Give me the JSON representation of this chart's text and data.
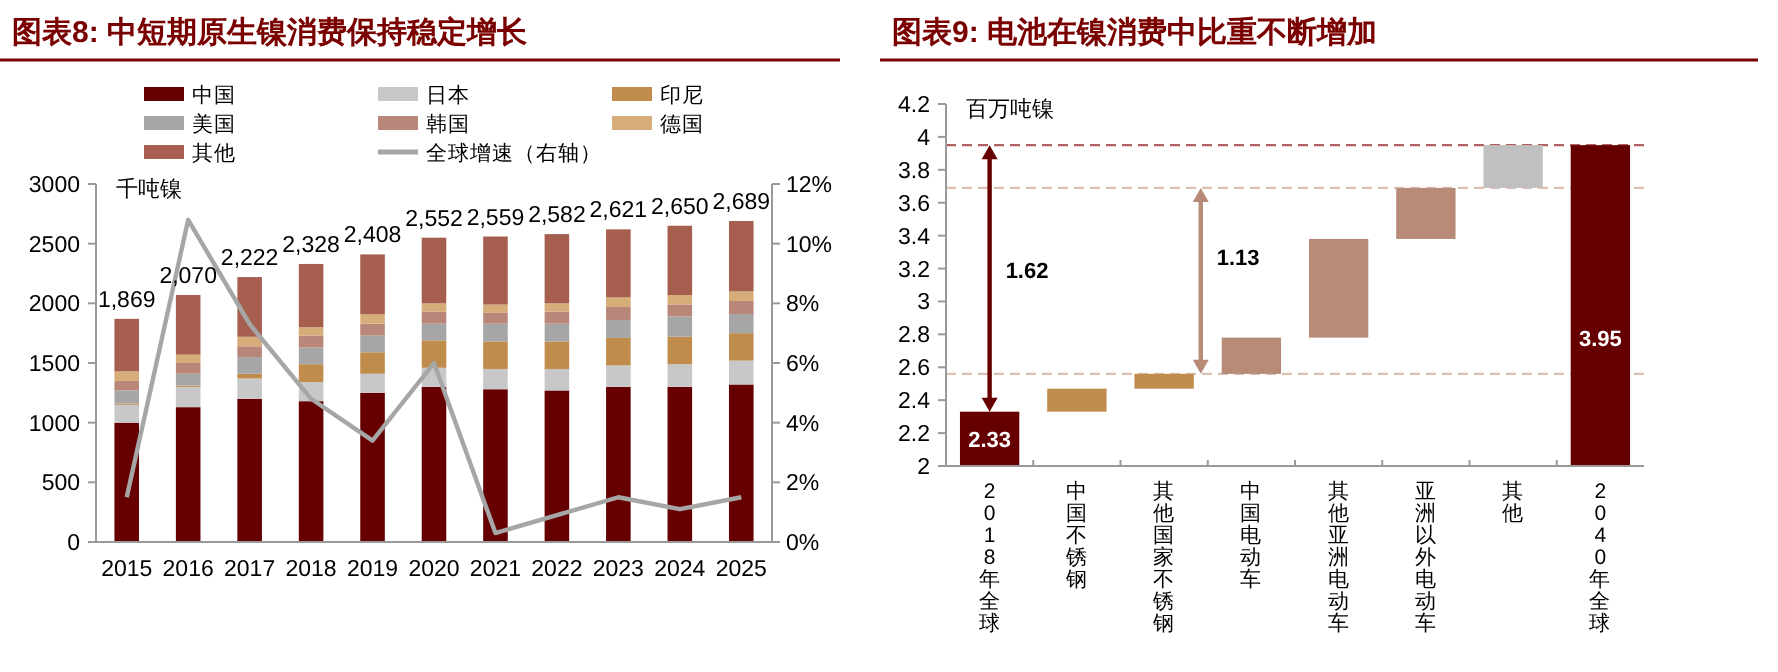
{
  "chart_data": [
    {
      "type": "bar",
      "title": "图表8: 中短期原生镍消费保持稳定增长",
      "ylabel": "千吨镍",
      "stacked": true,
      "legend": "top",
      "categories": [
        "2015",
        "2016",
        "2017",
        "2018",
        "2019",
        "2020",
        "2021",
        "2022",
        "2023",
        "2024",
        "2025"
      ],
      "series": [
        {
          "name": "中国",
          "color": "#660000",
          "values": [
            1000,
            1130,
            1200,
            1180,
            1250,
            1300,
            1280,
            1270,
            1300,
            1300,
            1320
          ]
        },
        {
          "name": "日本",
          "color": "#c8c8c8",
          "values": [
            150,
            170,
            170,
            160,
            160,
            160,
            170,
            180,
            180,
            190,
            200
          ]
        },
        {
          "name": "印尼",
          "color": "#c08c4c",
          "values": [
            10,
            10,
            40,
            150,
            180,
            230,
            230,
            230,
            230,
            230,
            230
          ]
        },
        {
          "name": "美国",
          "color": "#a6a6a6",
          "values": [
            110,
            100,
            140,
            140,
            140,
            140,
            150,
            150,
            150,
            170,
            160
          ]
        },
        {
          "name": "韩国",
          "color": "#b8877a",
          "values": [
            80,
            90,
            90,
            100,
            100,
            100,
            90,
            100,
            110,
            100,
            110
          ]
        },
        {
          "name": "德国",
          "color": "#d6ac78",
          "values": [
            80,
            70,
            80,
            70,
            80,
            70,
            70,
            70,
            80,
            80,
            80
          ]
        },
        {
          "name": "其他",
          "color": "#a65e4e",
          "values": [
            440,
            500,
            500,
            530,
            500,
            550,
            570,
            580,
            570,
            580,
            590
          ]
        },
        {
          "name": "全球增速（右轴）",
          "type": "line",
          "axis": "y2",
          "color": "#a6a6a6",
          "values": [
            1.5,
            10.8,
            7.3,
            4.8,
            3.4,
            6.0,
            0.3,
            0.9,
            1.5,
            1.1,
            1.5
          ]
        }
      ],
      "totals": [
        "1,869",
        "2,070",
        "2,222",
        "2,328",
        "2,408",
        "2,552",
        "2,559",
        "2,582",
        "2,621",
        "2,650",
        "2,689"
      ],
      "ylim": [
        0,
        3000
      ],
      "yticks": [
        0,
        500,
        1000,
        1500,
        2000,
        2500,
        3000
      ],
      "y2lim": [
        0,
        12
      ],
      "y2ticks": [
        {
          "value": 0,
          "label": "0%"
        },
        {
          "value": 2,
          "label": "2%"
        },
        {
          "value": 4,
          "label": "4%"
        },
        {
          "value": 6,
          "label": "6%"
        },
        {
          "value": 8,
          "label": "8%"
        },
        {
          "value": 10,
          "label": "10%"
        },
        {
          "value": 12,
          "label": "12%"
        }
      ]
    },
    {
      "type": "bar",
      "title": "图表9: 电池在镍消费中比重不断增加",
      "ylabel": "百万吨镍",
      "categories": [
        "2018年全球",
        "中国不锈钢",
        "其他国家不锈钢",
        "中国电动车",
        "其他亚洲电动车",
        "亚洲以外电动车",
        "其他",
        "2040年全球"
      ],
      "base": [
        2,
        2.33,
        2.47,
        2.56,
        2.78,
        3.38,
        3.69,
        2
      ],
      "values": [
        0.33,
        0.14,
        0.09,
        0.22,
        0.6,
        0.31,
        0.26,
        1.95
      ],
      "colors": [
        "#660000",
        "#c08c4c",
        "#c08c4c",
        "#b88a78",
        "#b88a78",
        "#b88a78",
        "#c0c0c0",
        "#660000"
      ],
      "value_labels": [
        "2.33",
        null,
        null,
        null,
        null,
        null,
        null,
        "3.95"
      ],
      "ylim": [
        2,
        4.2
      ],
      "yticks": [
        2,
        2.2,
        2.4,
        2.6,
        2.8,
        3,
        3.2,
        3.4,
        3.6,
        3.8,
        4,
        4.2
      ],
      "ref_lines": [
        {
          "axis": "y",
          "value": 3.95,
          "color": "#b06060",
          "line_style": "dashed"
        },
        {
          "axis": "y",
          "value": 3.69,
          "color": "#dcc0b4",
          "line_style": "dashed"
        },
        {
          "axis": "y",
          "value": 2.56,
          "color": "#dcc0b4",
          "line_style": "dashed"
        }
      ],
      "annotations": [
        "1.62",
        "1.13"
      ]
    }
  ]
}
